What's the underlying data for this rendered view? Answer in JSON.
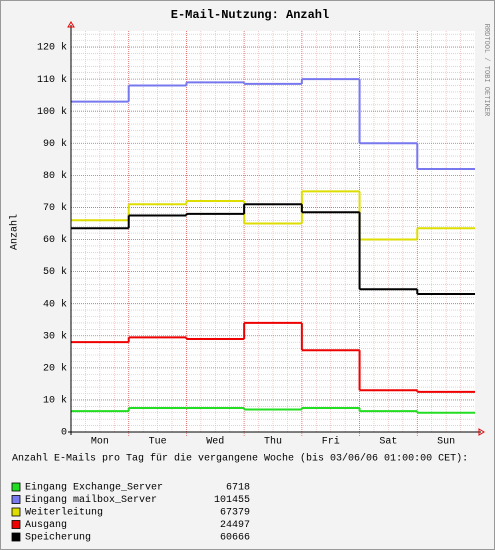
{
  "chart_data": {
    "type": "step",
    "title": "E-Mail-Nutzung: Anzahl",
    "y_label": "Anzahl",
    "watermark": "RRDTOOL / TOBI OETIKER",
    "footer": "Anzahl E-Mails pro Tag für die vergangene Woche (bis 03/06/06 01:00:00 CET):",
    "categories": [
      "Mon",
      "Tue",
      "Wed",
      "Thu",
      "Fri",
      "Sat",
      "Sun"
    ],
    "ylim": [
      0,
      125000
    ],
    "yticks": [
      0,
      {
        "value": 10000,
        "label": "10 k"
      },
      {
        "value": 20000,
        "label": "20 k"
      },
      {
        "value": 30000,
        "label": "30 k"
      },
      {
        "value": 40000,
        "label": "40 k"
      },
      {
        "value": 50000,
        "label": "50 k"
      },
      {
        "value": 60000,
        "label": "60 k"
      },
      {
        "value": 70000,
        "label": "70 k"
      },
      {
        "value": 80000,
        "label": "80 k"
      },
      {
        "value": 90000,
        "label": "90 k"
      },
      {
        "value": 100000,
        "label": "100 k"
      },
      {
        "value": 110000,
        "label": "110 k"
      },
      {
        "value": 120000,
        "label": "120 k"
      }
    ],
    "grid": true,
    "series": [
      {
        "name": "Eingang Exchange_Server",
        "color": "#22dd22",
        "total": 6718,
        "values": [
          6500,
          7500,
          7500,
          7000,
          7500,
          6500,
          6000
        ]
      },
      {
        "name": "Eingang mailbox_Server",
        "color": "#7777ee",
        "total": 101455,
        "values": [
          103000,
          108000,
          109000,
          108500,
          110000,
          90000,
          82000
        ]
      },
      {
        "name": "Weiterleitung",
        "color": "#dddd00",
        "total": 67379,
        "values": [
          66000,
          71000,
          72000,
          65000,
          75000,
          60000,
          63500
        ]
      },
      {
        "name": "Ausgang",
        "color": "#ee0000",
        "total": 24497,
        "values": [
          28000,
          29500,
          29000,
          34000,
          25500,
          13000,
          12500
        ]
      },
      {
        "name": "Speicherung",
        "color": "#000000",
        "total": 60666,
        "values": [
          63500,
          67500,
          68000,
          71000,
          68500,
          44500,
          43000
        ]
      }
    ]
  }
}
